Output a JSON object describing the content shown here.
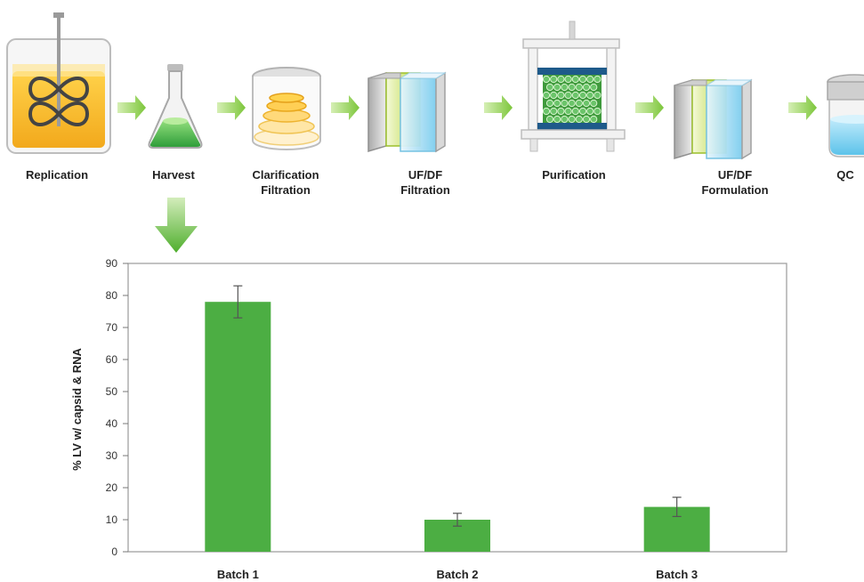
{
  "process": {
    "steps": [
      {
        "label": "Replication",
        "icon": "bioreactor-icon"
      },
      {
        "label": "Harvest",
        "icon": "flask-icon"
      },
      {
        "label": "Clarification Filtration",
        "icon": "depth-filter-icon"
      },
      {
        "label": "UF/DF Filtration",
        "icon": "tff-cassette-icon"
      },
      {
        "label": "Purification",
        "icon": "chromatography-column-icon"
      },
      {
        "label": "UF/DF Formulation",
        "icon": "tff-cassette-icon"
      },
      {
        "label": "QC",
        "icon": "vial-icon"
      }
    ],
    "arrow_color": "#8fcf3a",
    "highlight_arrow_color": "#5ab52e"
  },
  "chart_data": {
    "type": "bar",
    "categories": [
      "Batch 1",
      "Batch 2",
      "Batch 3"
    ],
    "values": [
      78,
      10,
      14
    ],
    "error": [
      5,
      2,
      3
    ],
    "ylabel": "% LV w/ capsid & RNA",
    "ylim": [
      0,
      90
    ],
    "yticks": [
      0,
      10,
      20,
      30,
      40,
      50,
      60,
      70,
      80,
      90
    ],
    "bar_color": "#4cae43",
    "grid": false,
    "legend": "none"
  }
}
